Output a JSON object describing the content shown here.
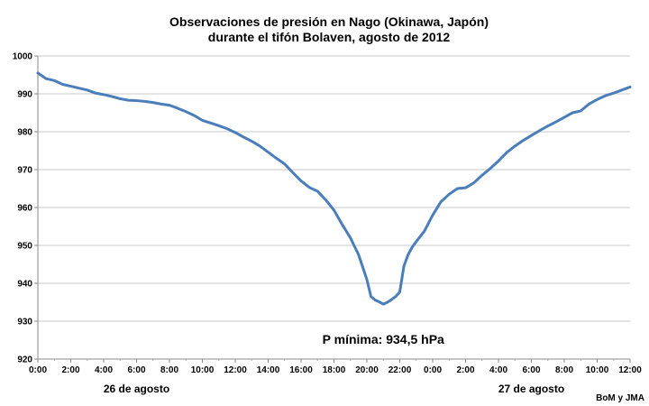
{
  "chart_data": {
    "type": "line",
    "title_lines": [
      "Observaciones de presión en Nago (Okinawa, Japón)",
      "durante el tifón Bolaven, agosto de 2012"
    ],
    "xlabel": "",
    "ylabel": "",
    "ylim": [
      920,
      1000
    ],
    "yticks": [
      "920",
      "930",
      "940",
      "950",
      "960",
      "970",
      "980",
      "990",
      "1000"
    ],
    "xlim_hours": [
      0,
      36
    ],
    "xticks": [
      "0:00",
      "2:00",
      "4:00",
      "6:00",
      "8:00",
      "10:00",
      "12:00",
      "14:00",
      "16:00",
      "18:00",
      "20:00",
      "22:00",
      "0:00",
      "2:00",
      "4:00",
      "6:00",
      "8:00",
      "10:00",
      "12:00"
    ],
    "day_labels": [
      {
        "text": "26 de agosto",
        "x_hour": 6
      },
      {
        "text": "27 de agosto",
        "x_hour": 30
      }
    ],
    "grid": {
      "horizontal": true,
      "vertical": false
    },
    "line_color": "#4a7ebb",
    "series": [
      {
        "x": [
          0,
          0.5,
          1,
          1.5,
          2,
          2.5,
          3,
          3.5,
          4,
          4.5,
          5,
          5.5,
          6,
          6.5,
          7,
          7.5,
          8,
          8.5,
          9,
          9.5,
          10,
          10.5,
          11,
          11.5,
          12,
          12.5,
          13,
          13.5,
          14,
          14.5,
          15,
          15.5,
          16,
          16.5,
          17,
          17.5,
          18,
          18.5,
          19,
          19.5,
          20,
          20.25,
          20.5,
          20.75,
          21,
          21.25,
          21.5,
          21.75,
          22,
          22.25,
          22.5,
          22.75,
          23,
          23.5,
          24,
          24.5,
          25,
          25.5,
          26,
          26.5,
          27,
          27.5,
          28,
          28.5,
          29,
          29.5,
          30,
          30.5,
          31,
          31.5,
          32,
          32.5,
          33,
          33.5,
          34,
          34.5,
          35,
          35.5,
          36
        ],
        "values": [
          995.5,
          994.0,
          993.5,
          992.5,
          992.0,
          991.5,
          991.0,
          990.2,
          989.8,
          989.3,
          988.7,
          988.3,
          988.2,
          988.0,
          987.7,
          987.3,
          987.0,
          986.2,
          985.3,
          984.3,
          983.0,
          982.3,
          981.6,
          980.8,
          979.8,
          978.6,
          977.5,
          976.2,
          974.6,
          973.0,
          971.5,
          969.2,
          967.0,
          965.3,
          964.3,
          962.0,
          959.3,
          955.5,
          952.0,
          947.5,
          941.0,
          936.5,
          935.6,
          935.1,
          934.5,
          935.0,
          935.7,
          936.5,
          937.7,
          944.5,
          947.5,
          949.5,
          951.0,
          953.8,
          958.0,
          961.5,
          963.5,
          965.0,
          965.2,
          966.5,
          968.5,
          970.3,
          972.3,
          974.5,
          976.2,
          977.7,
          979.0,
          980.3,
          981.5,
          982.6,
          983.8,
          985.0,
          985.5,
          987.3,
          988.5,
          989.5,
          990.2,
          991.0,
          991.8
        ]
      }
    ],
    "annotation": {
      "text": "P mínima: 934,5 hPa",
      "x_hour": 21,
      "y": 934.5
    },
    "source_note": "BoM y JMA"
  }
}
